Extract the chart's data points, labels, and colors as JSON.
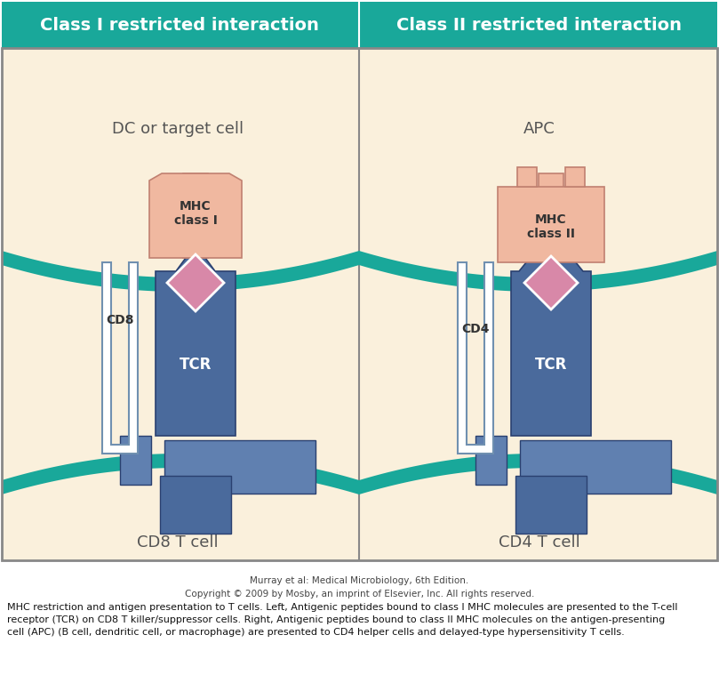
{
  "title_left": "Class I restricted interaction",
  "title_right": "Class II restricted interaction",
  "cell_label_left_top": "DC or target cell",
  "cell_label_right_top": "APC",
  "cell_label_left_bottom": "CD8 T cell",
  "cell_label_right_bottom": "CD4 T cell",
  "cd_label_left": "CD8",
  "cd_label_right": "CD4",
  "mhc_label_left": "MHC\nclass I",
  "mhc_label_right": "MHC\nclass II",
  "tcr_label": "TCR",
  "bg_color": "#FAF0DC",
  "teal_color": "#19A89A",
  "blue_tcr": "#4A6A9C",
  "blue_foot": "#6080B0",
  "salmon": "#F0B8A0",
  "pink_diamond": "#D888A8",
  "white": "#FFFFFF",
  "title_bg": "#19A89A",
  "gray_border": "#888888",
  "text_dark": "#333333",
  "caption_text": "Murray et al: Medical Microbiology, 6th Edition.\nCopyright © 2009 by Mosby, an imprint of Elsevier, Inc. All rights reserved.",
  "body_text_line1": "MHC restriction and antigen presentation to T cells. Left, Antigenic peptides bound to class I MHC molecules are presented to the T-cell",
  "body_text_line2": "receptor (TCR) on CD8 T killer/suppressor cells. Right, Antigenic peptides bound to class II MHC molecules on the antigen-presenting",
  "body_text_line3": "cell (APC) (B cell, dendritic cell, or macrophage) are presented to CD4 helper cells and delayed-type hypersensitivity T cells."
}
